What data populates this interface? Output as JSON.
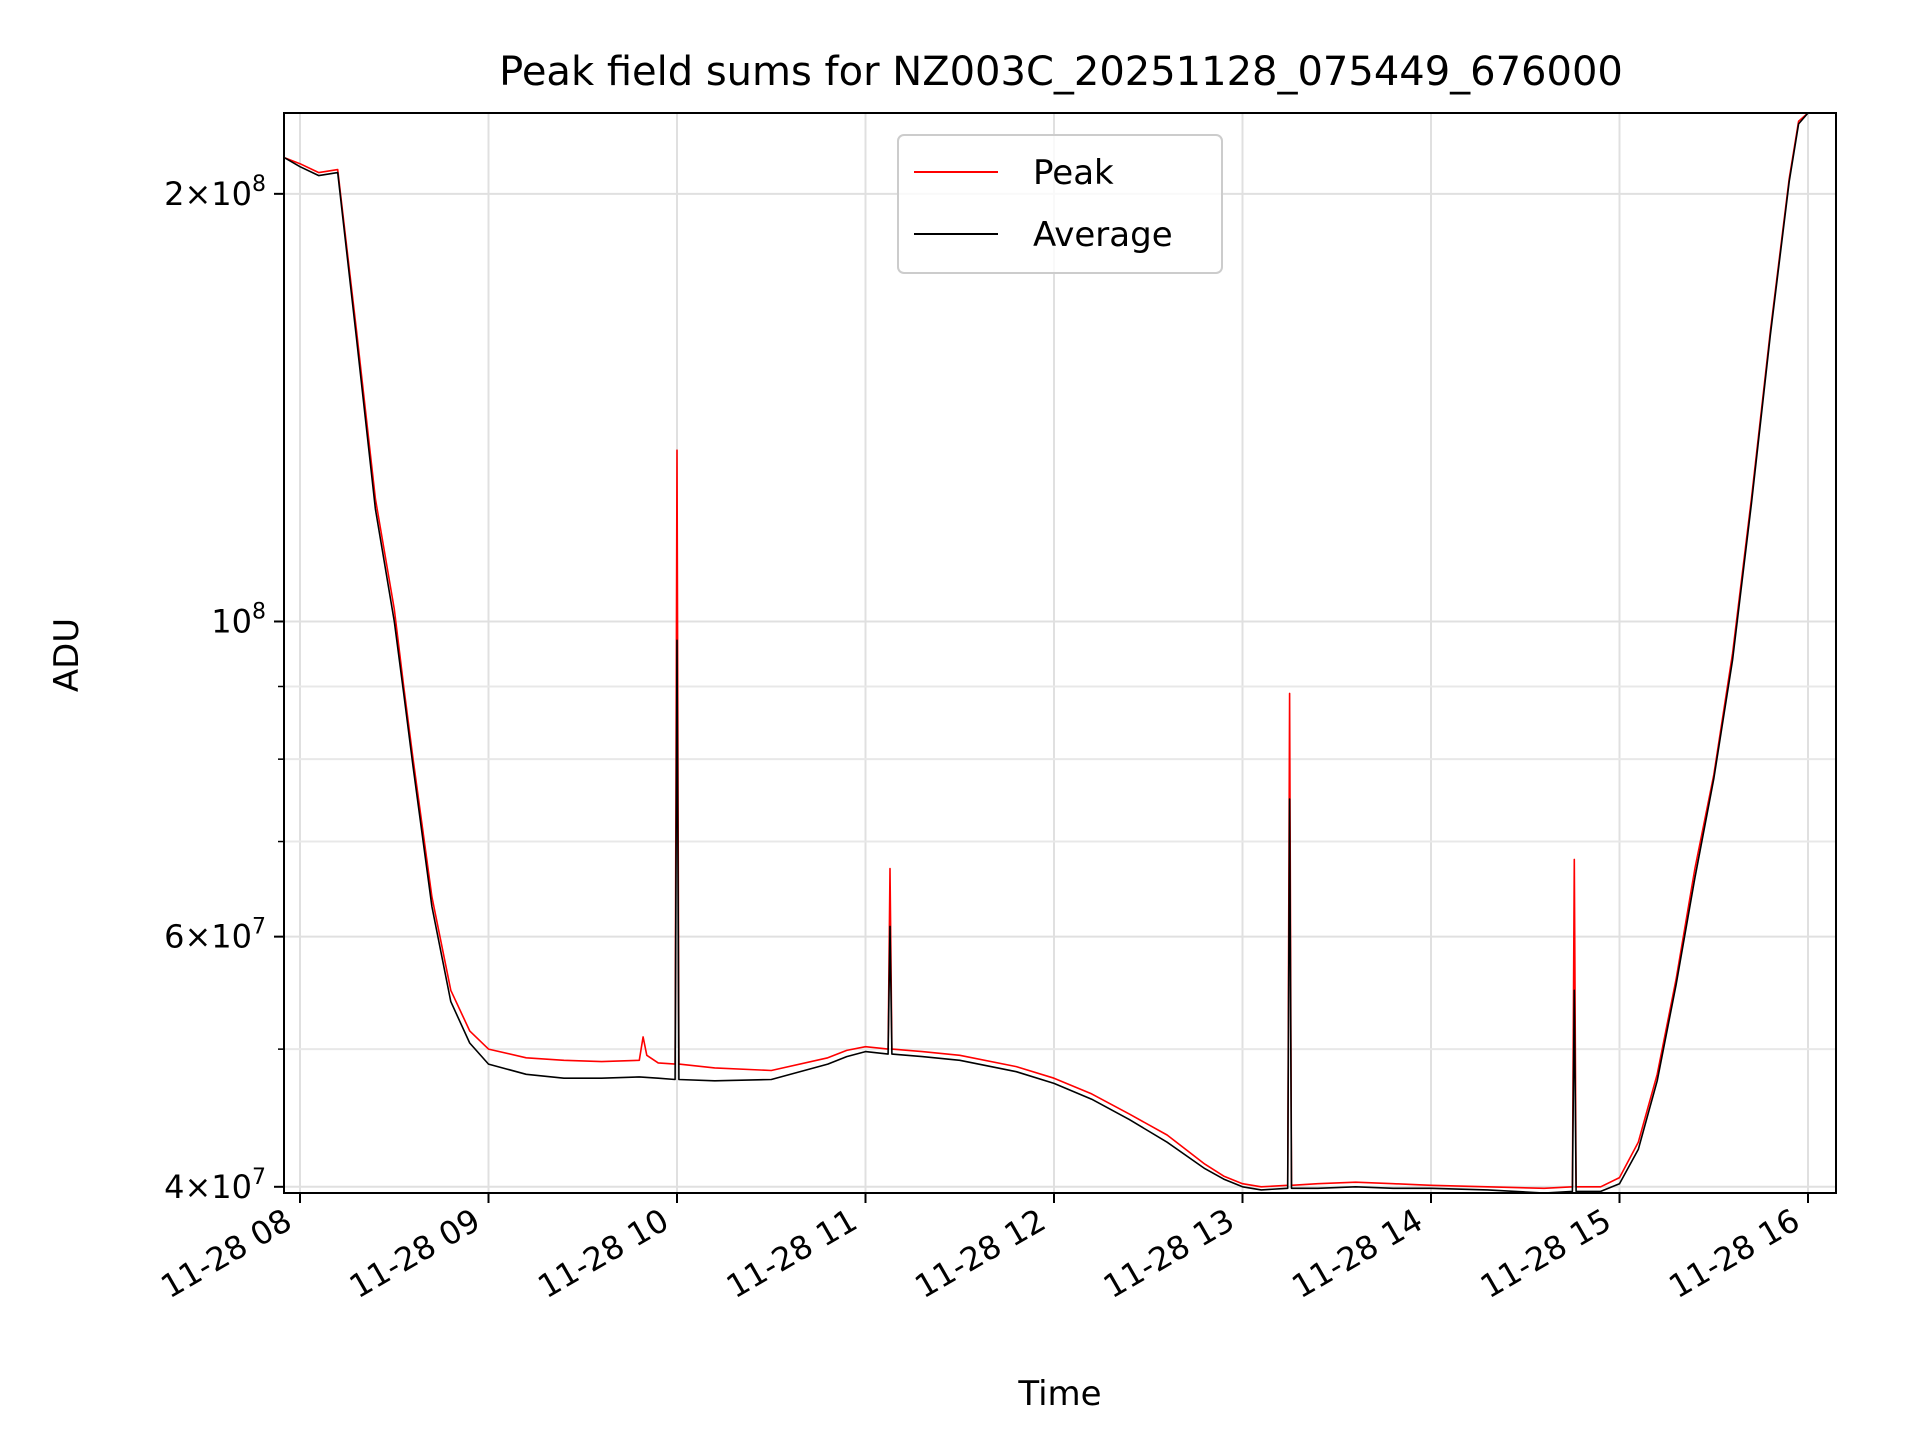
{
  "chart_data": {
    "type": "line",
    "title": "Peak field sums for NZ003C_20251128_075449_676000",
    "xlabel": "Time",
    "ylabel": "ADU",
    "yscale": "log",
    "ylim": [
      39600000,
      228000000
    ],
    "xlim_hours": [
      7.92,
      16.12
    ],
    "grid": true,
    "legend_position": "top-center",
    "x_ticks": [
      {
        "h": 8,
        "label": "11-28 08"
      },
      {
        "h": 9,
        "label": "11-28 09"
      },
      {
        "h": 10,
        "label": "11-28 10"
      },
      {
        "h": 11,
        "label": "11-28 11"
      },
      {
        "h": 12,
        "label": "11-28 12"
      },
      {
        "h": 13,
        "label": "11-28 13"
      },
      {
        "h": 14,
        "label": "11-28 14"
      },
      {
        "h": 15,
        "label": "11-28 15"
      },
      {
        "h": 16,
        "label": "11-28 16"
      }
    ],
    "y_major_ticks": [
      {
        "v": 40000000,
        "mant": "4",
        "exp": "7"
      },
      {
        "v": 60000000,
        "mant": "6",
        "exp": "7"
      },
      {
        "v": 100000000,
        "mant": "",
        "exp": "8"
      },
      {
        "v": 200000000,
        "mant": "2",
        "exp": "8"
      }
    ],
    "y_minor_ticks": [
      50000000,
      70000000,
      80000000,
      90000000
    ],
    "series": [
      {
        "name": "Peak",
        "color": "#ff0000",
        "x": [
          7.92,
          8.0,
          8.1,
          8.2,
          8.3,
          8.4,
          8.5,
          8.55,
          8.6,
          8.7,
          8.8,
          8.9,
          9.0,
          9.2,
          9.4,
          9.6,
          9.8,
          9.82,
          9.84,
          9.9,
          9.99,
          10.0,
          10.01,
          10.2,
          10.5,
          10.8,
          10.9,
          11.0,
          11.12,
          11.13,
          11.14,
          11.3,
          11.5,
          11.8,
          12.0,
          12.2,
          12.4,
          12.6,
          12.8,
          12.9,
          13.0,
          13.1,
          13.24,
          13.25,
          13.26,
          13.4,
          13.6,
          13.8,
          14.0,
          14.3,
          14.6,
          14.75,
          14.76,
          14.77,
          14.9,
          15.0,
          15.1,
          15.2,
          15.3,
          15.4,
          15.5,
          15.6,
          15.7,
          15.8,
          15.9,
          15.95,
          16.0,
          16.05
        ],
        "y": [
          212000000,
          210000000,
          207000000,
          208000000,
          160000000,
          122000000,
          102000000,
          90000000,
          80000000,
          64000000,
          55000000,
          51500000,
          50000000,
          49300000,
          49100000,
          49000000,
          49100000,
          51000000,
          49500000,
          48900000,
          48800000,
          132000000,
          48800000,
          48500000,
          48300000,
          49300000,
          49900000,
          50200000,
          50000000,
          67000000,
          50000000,
          49800000,
          49500000,
          48600000,
          47700000,
          46500000,
          45000000,
          43500000,
          41500000,
          40700000,
          40200000,
          40000000,
          40100000,
          89000000,
          40100000,
          40200000,
          40300000,
          40200000,
          40100000,
          40000000,
          39900000,
          40000000,
          68000000,
          40000000,
          40000000,
          40600000,
          43000000,
          48000000,
          56000000,
          67000000,
          78000000,
          95000000,
          122000000,
          160000000,
          205000000,
          225000000,
          228000000,
          228000000
        ]
      },
      {
        "name": "Average",
        "color": "#000000",
        "x": [
          7.92,
          8.0,
          8.1,
          8.2,
          8.3,
          8.4,
          8.5,
          8.55,
          8.6,
          8.7,
          8.8,
          8.9,
          9.0,
          9.2,
          9.4,
          9.6,
          9.8,
          9.9,
          9.99,
          10.0,
          10.01,
          10.2,
          10.5,
          10.8,
          10.9,
          11.0,
          11.12,
          11.13,
          11.14,
          11.3,
          11.5,
          11.8,
          12.0,
          12.2,
          12.4,
          12.6,
          12.8,
          12.9,
          13.0,
          13.1,
          13.24,
          13.25,
          13.26,
          13.4,
          13.6,
          13.8,
          14.0,
          14.3,
          14.6,
          14.75,
          14.76,
          14.77,
          14.9,
          15.0,
          15.1,
          15.2,
          15.3,
          15.4,
          15.5,
          15.6,
          15.7,
          15.8,
          15.9,
          15.95,
          16.0,
          16.05
        ],
        "y": [
          212000000,
          209000000,
          206000000,
          207000000,
          158000000,
          120000000,
          100000000,
          89000000,
          79000000,
          63000000,
          54000000,
          50500000,
          48800000,
          48000000,
          47700000,
          47700000,
          47800000,
          47700000,
          47600000,
          97000000,
          47600000,
          47500000,
          47600000,
          48800000,
          49400000,
          49800000,
          49600000,
          61000000,
          49600000,
          49400000,
          49100000,
          48200000,
          47300000,
          46100000,
          44600000,
          43000000,
          41200000,
          40500000,
          40000000,
          39800000,
          39900000,
          75000000,
          39900000,
          39900000,
          40000000,
          39900000,
          39900000,
          39800000,
          39600000,
          39700000,
          55000000,
          39700000,
          39700000,
          40200000,
          42500000,
          47500000,
          55500000,
          66000000,
          77500000,
          94000000,
          121000000,
          159000000,
          204000000,
          224000000,
          228000000,
          228000000
        ]
      }
    ]
  }
}
